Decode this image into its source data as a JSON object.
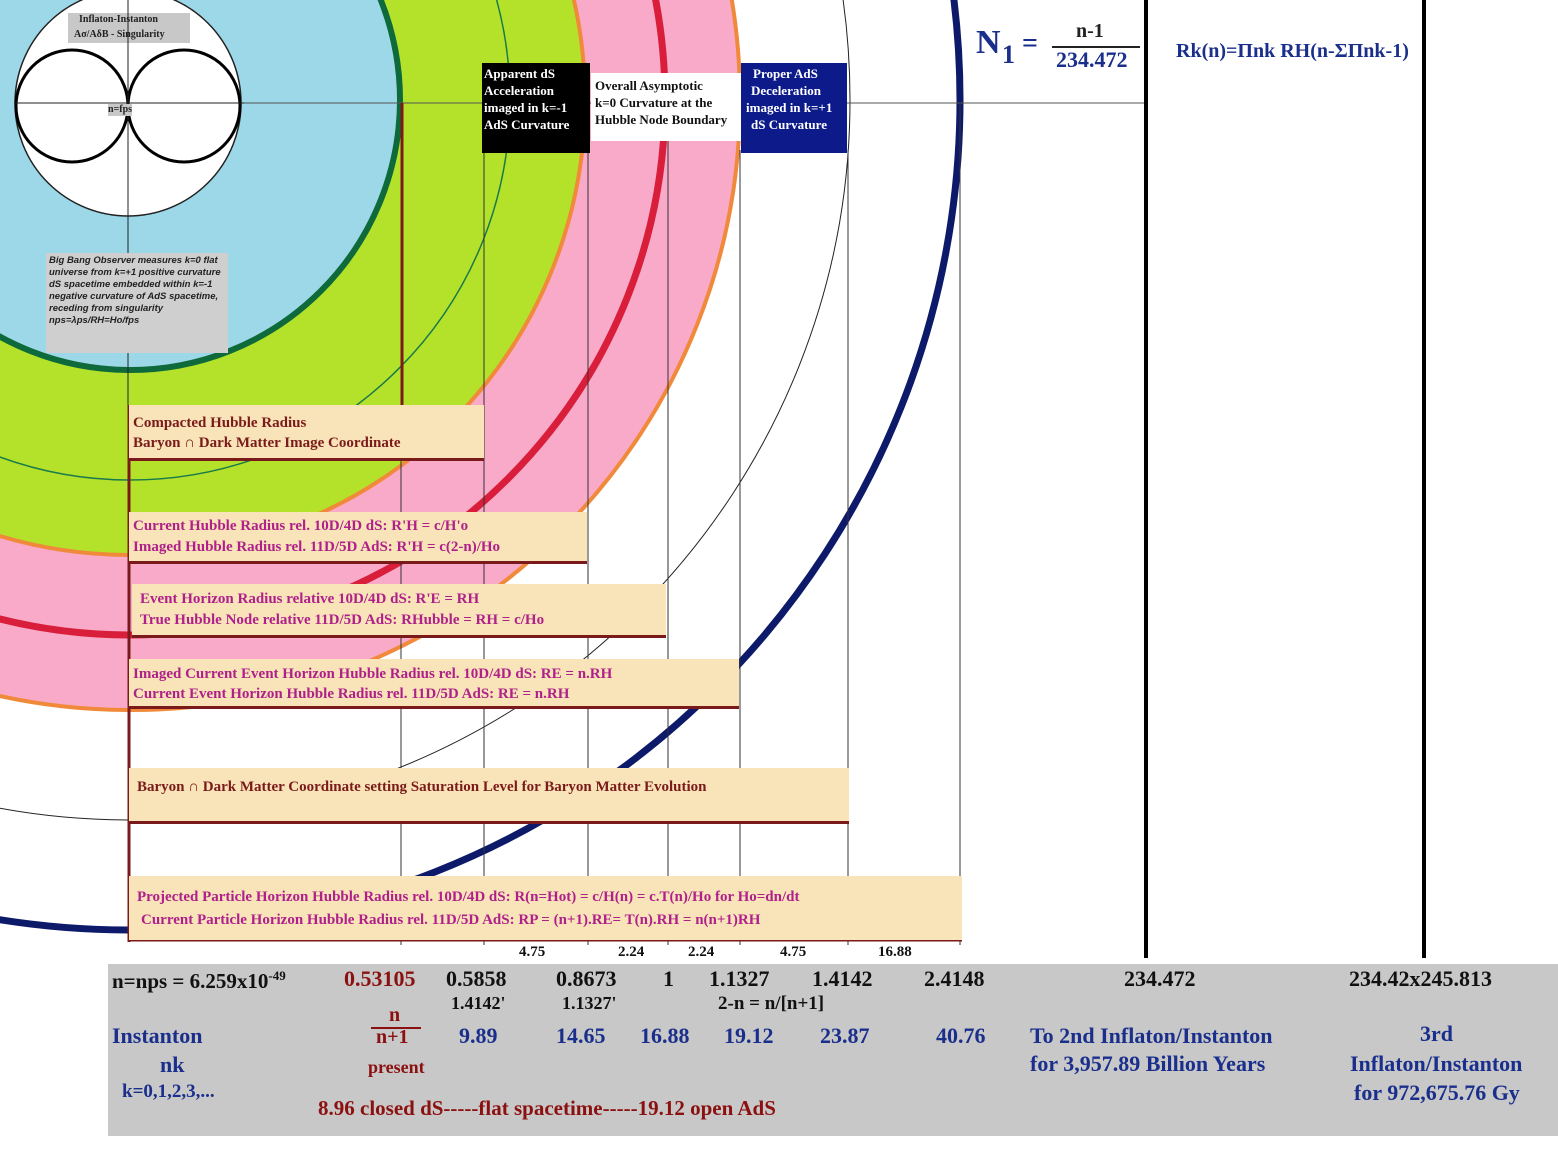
{
  "inset": {
    "title": "Inflaton-Instanton",
    "subtitle": "Aσ/AδB - Singularity",
    "center_label": "n=fps"
  },
  "note": "Big Bang Observer measures k=0 flat universe from k=+1 positive curvature dS spacetime embedded within k=-1 negative curvature of AdS spacetime, receding from singularity nps=λps/RH=Ho/fps",
  "headers": {
    "apparent": [
      "Apparent dS",
      "Acceleration",
      "imaged in k=-1",
      "AdS Curvature"
    ],
    "overall": [
      "Overall Asymptotic",
      "k=0 Curvature at the",
      "Hubble Node Boundary"
    ],
    "proper": [
      "Proper AdS",
      "Deceleration",
      "imaged in k=+1",
      "dS Curvature"
    ]
  },
  "formula": {
    "n1_symbol": "N",
    "n1_sub": "1",
    "n1_eq": "=",
    "n1_numer": "n-1",
    "n1_denom": "234.472",
    "rk": "Rk(n)=Πnk RH(n-ΣΠnk-1)"
  },
  "boxes": {
    "compacted": [
      "Compacted Hubble Radius",
      "Baryon  ∩ Dark Matter Image Coordinate"
    ],
    "current": [
      "Current Hubble Radius rel. 10D/4D dS:      R'H  = c/H'o",
      "Imaged  Hubble Radius rel. 11D/5D AdS:  R'H = c(2-n)/Ho"
    ],
    "event": [
      "Event Horizon Radius relative 10D/4D dS:        R'E =   RH",
      "True Hubble Node relative 11D/5D AdS:  RHubble  = RH  = c/Ho"
    ],
    "imaged": [
      "Imaged Current Event Horizon Hubble Radius rel. 10D/4D dS:    RE  =   n.RH",
      "Current Event Horizon Hubble Radius rel. 11D/5D AdS:    RE   =   n.RH"
    ],
    "baryon": [
      "Baryon ∩ Dark Matter Coordinate setting Saturation Level for Baryon Matter Evolution"
    ],
    "projected": [
      "Projected Particle Horizon Hubble Radius rel. 10D/4D dS:    R(n=Hot)  =  c/H(n) =   c.T(n)/Ho   for Ho=dn/dt",
      "Current Particle Horizon Hubble Radius rel. 11D/5D AdS:    RP   =   (n+1).RE= T(n).RH  =  n(n+1)RH"
    ]
  },
  "grid_labels": [
    "4.75",
    "2.24",
    "2.24",
    "4.75",
    "16.88"
  ],
  "axis": {
    "nps": "n=nps = 6.259x10",
    "nps_exp": "-49",
    "values": [
      "0.53105",
      "0.5858",
      "0.8673",
      "1",
      "1.1327",
      "1.4142",
      "2.4148",
      "234.472",
      "234.42x245.813"
    ],
    "primes": [
      "1.4142'",
      "1.1327'"
    ],
    "two_minus_n": "2-n = n/[n+1]",
    "fraction_num": "n",
    "fraction_den": "n+1",
    "present": "present",
    "instanton": "Instanton",
    "nk": "nk",
    "k_list": "k=0,1,2,3,...",
    "bottom_values": [
      "9.89",
      "14.65",
      "16.88",
      "19.12",
      "23.87",
      "40.76"
    ],
    "second_line1": "To 2nd Inflaton/Instanton",
    "second_line2": "for 3,957.89 Billion Years",
    "third_line1": "3rd",
    "third_line2": "Inflaton/Instanton",
    "third_line3": "for 972,675.76 Gy",
    "bottom_caption": "8.96 closed dS-----flat spacetime-----19.12 open AdS"
  },
  "colors": {
    "sky": "#9cd8e8",
    "lime": "#b4e22a",
    "pink": "#f8aac8",
    "maroon": "#7a1a1a",
    "navy": "#0d1a6a",
    "box_fill": "#f8e4b8",
    "panel": "#c8c8c8"
  }
}
